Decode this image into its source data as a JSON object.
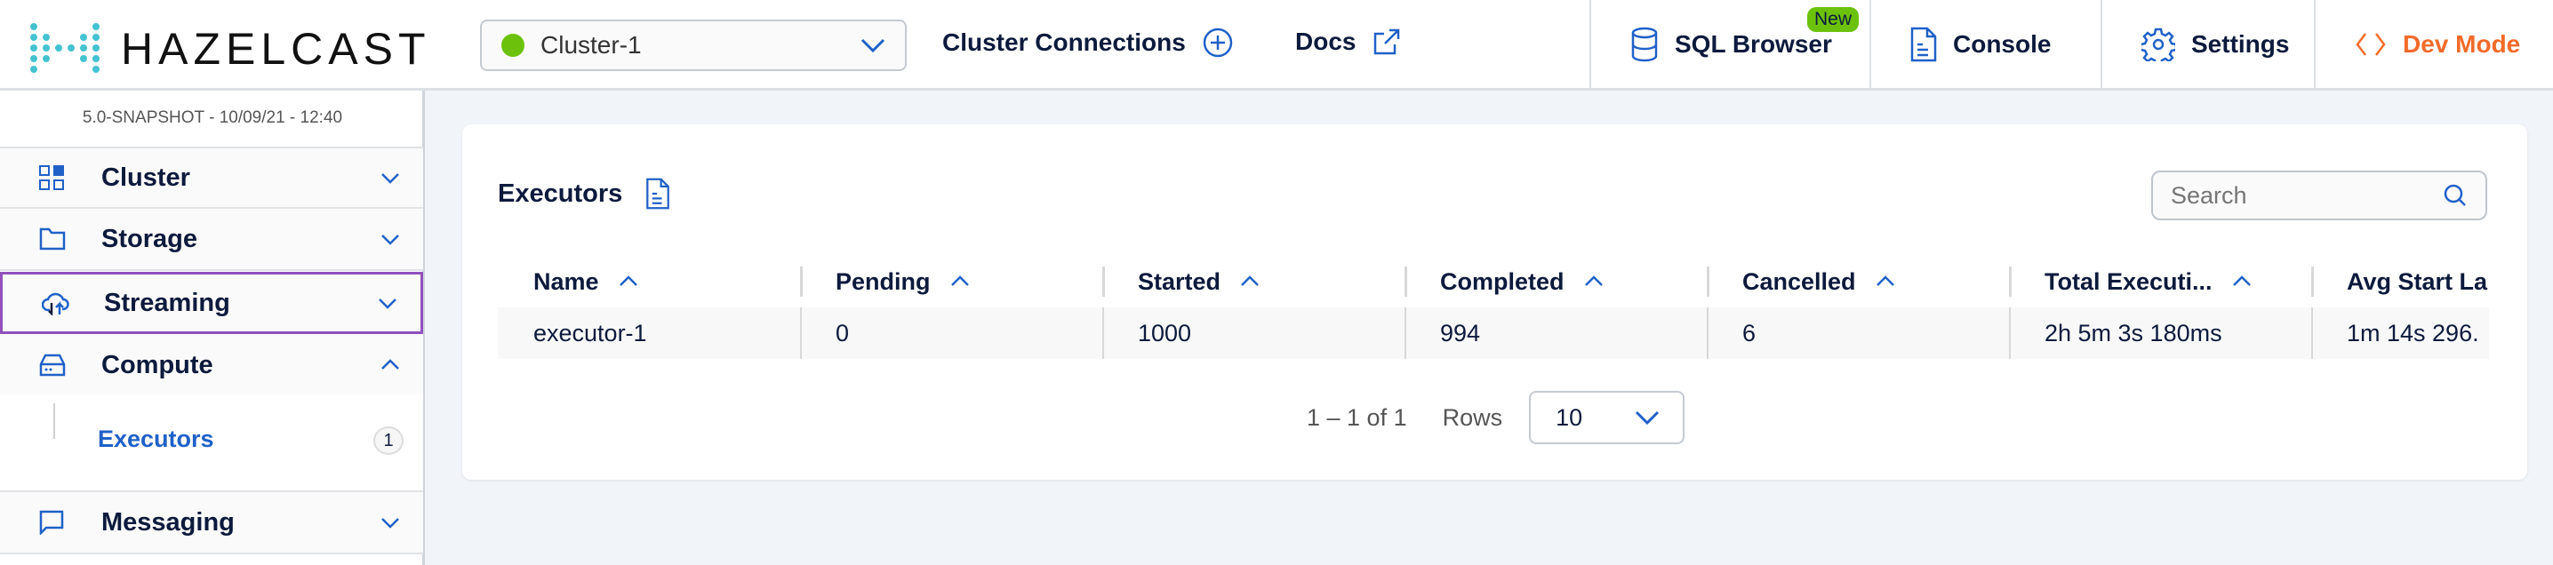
{
  "header": {
    "logo": "HAZELCAST",
    "cluster": "Cluster-1",
    "cluster_status_color": "#6cc20a",
    "cluster_connections": "Cluster Connections",
    "docs": "Docs",
    "sql_browser": "SQL Browser",
    "new_badge": "New",
    "console": "Console",
    "settings": "Settings",
    "dev_mode": "Dev Mode",
    "accent": "#2061c8",
    "dev_color": "#f26b2a"
  },
  "sidebar": {
    "version": "5.0-SNAPSHOT - 10/09/21 - 12:40",
    "items": [
      {
        "label": "Cluster",
        "icon": "grid-icon"
      },
      {
        "label": "Storage",
        "icon": "folder-icon"
      },
      {
        "label": "Streaming",
        "icon": "cloud-upload-icon"
      },
      {
        "label": "Compute",
        "icon": "hard-drive-icon"
      },
      {
        "label": "Messaging",
        "icon": "chat-icon"
      }
    ],
    "sub_item": {
      "label": "Executors",
      "count": "1"
    }
  },
  "main": {
    "title": "Executors",
    "search_placeholder": "Search",
    "columns": [
      "Name",
      "Pending",
      "Started",
      "Completed",
      "Cancelled",
      "Total Executi...",
      "Avg Start La"
    ],
    "rows": [
      [
        "executor-1",
        "0",
        "1000",
        "994",
        "6",
        "2h 5m 3s 180ms",
        "1m 14s 296."
      ]
    ],
    "pagination": {
      "range": "1 – 1 of 1",
      "rows_label": "Rows",
      "rows_value": "10"
    }
  }
}
